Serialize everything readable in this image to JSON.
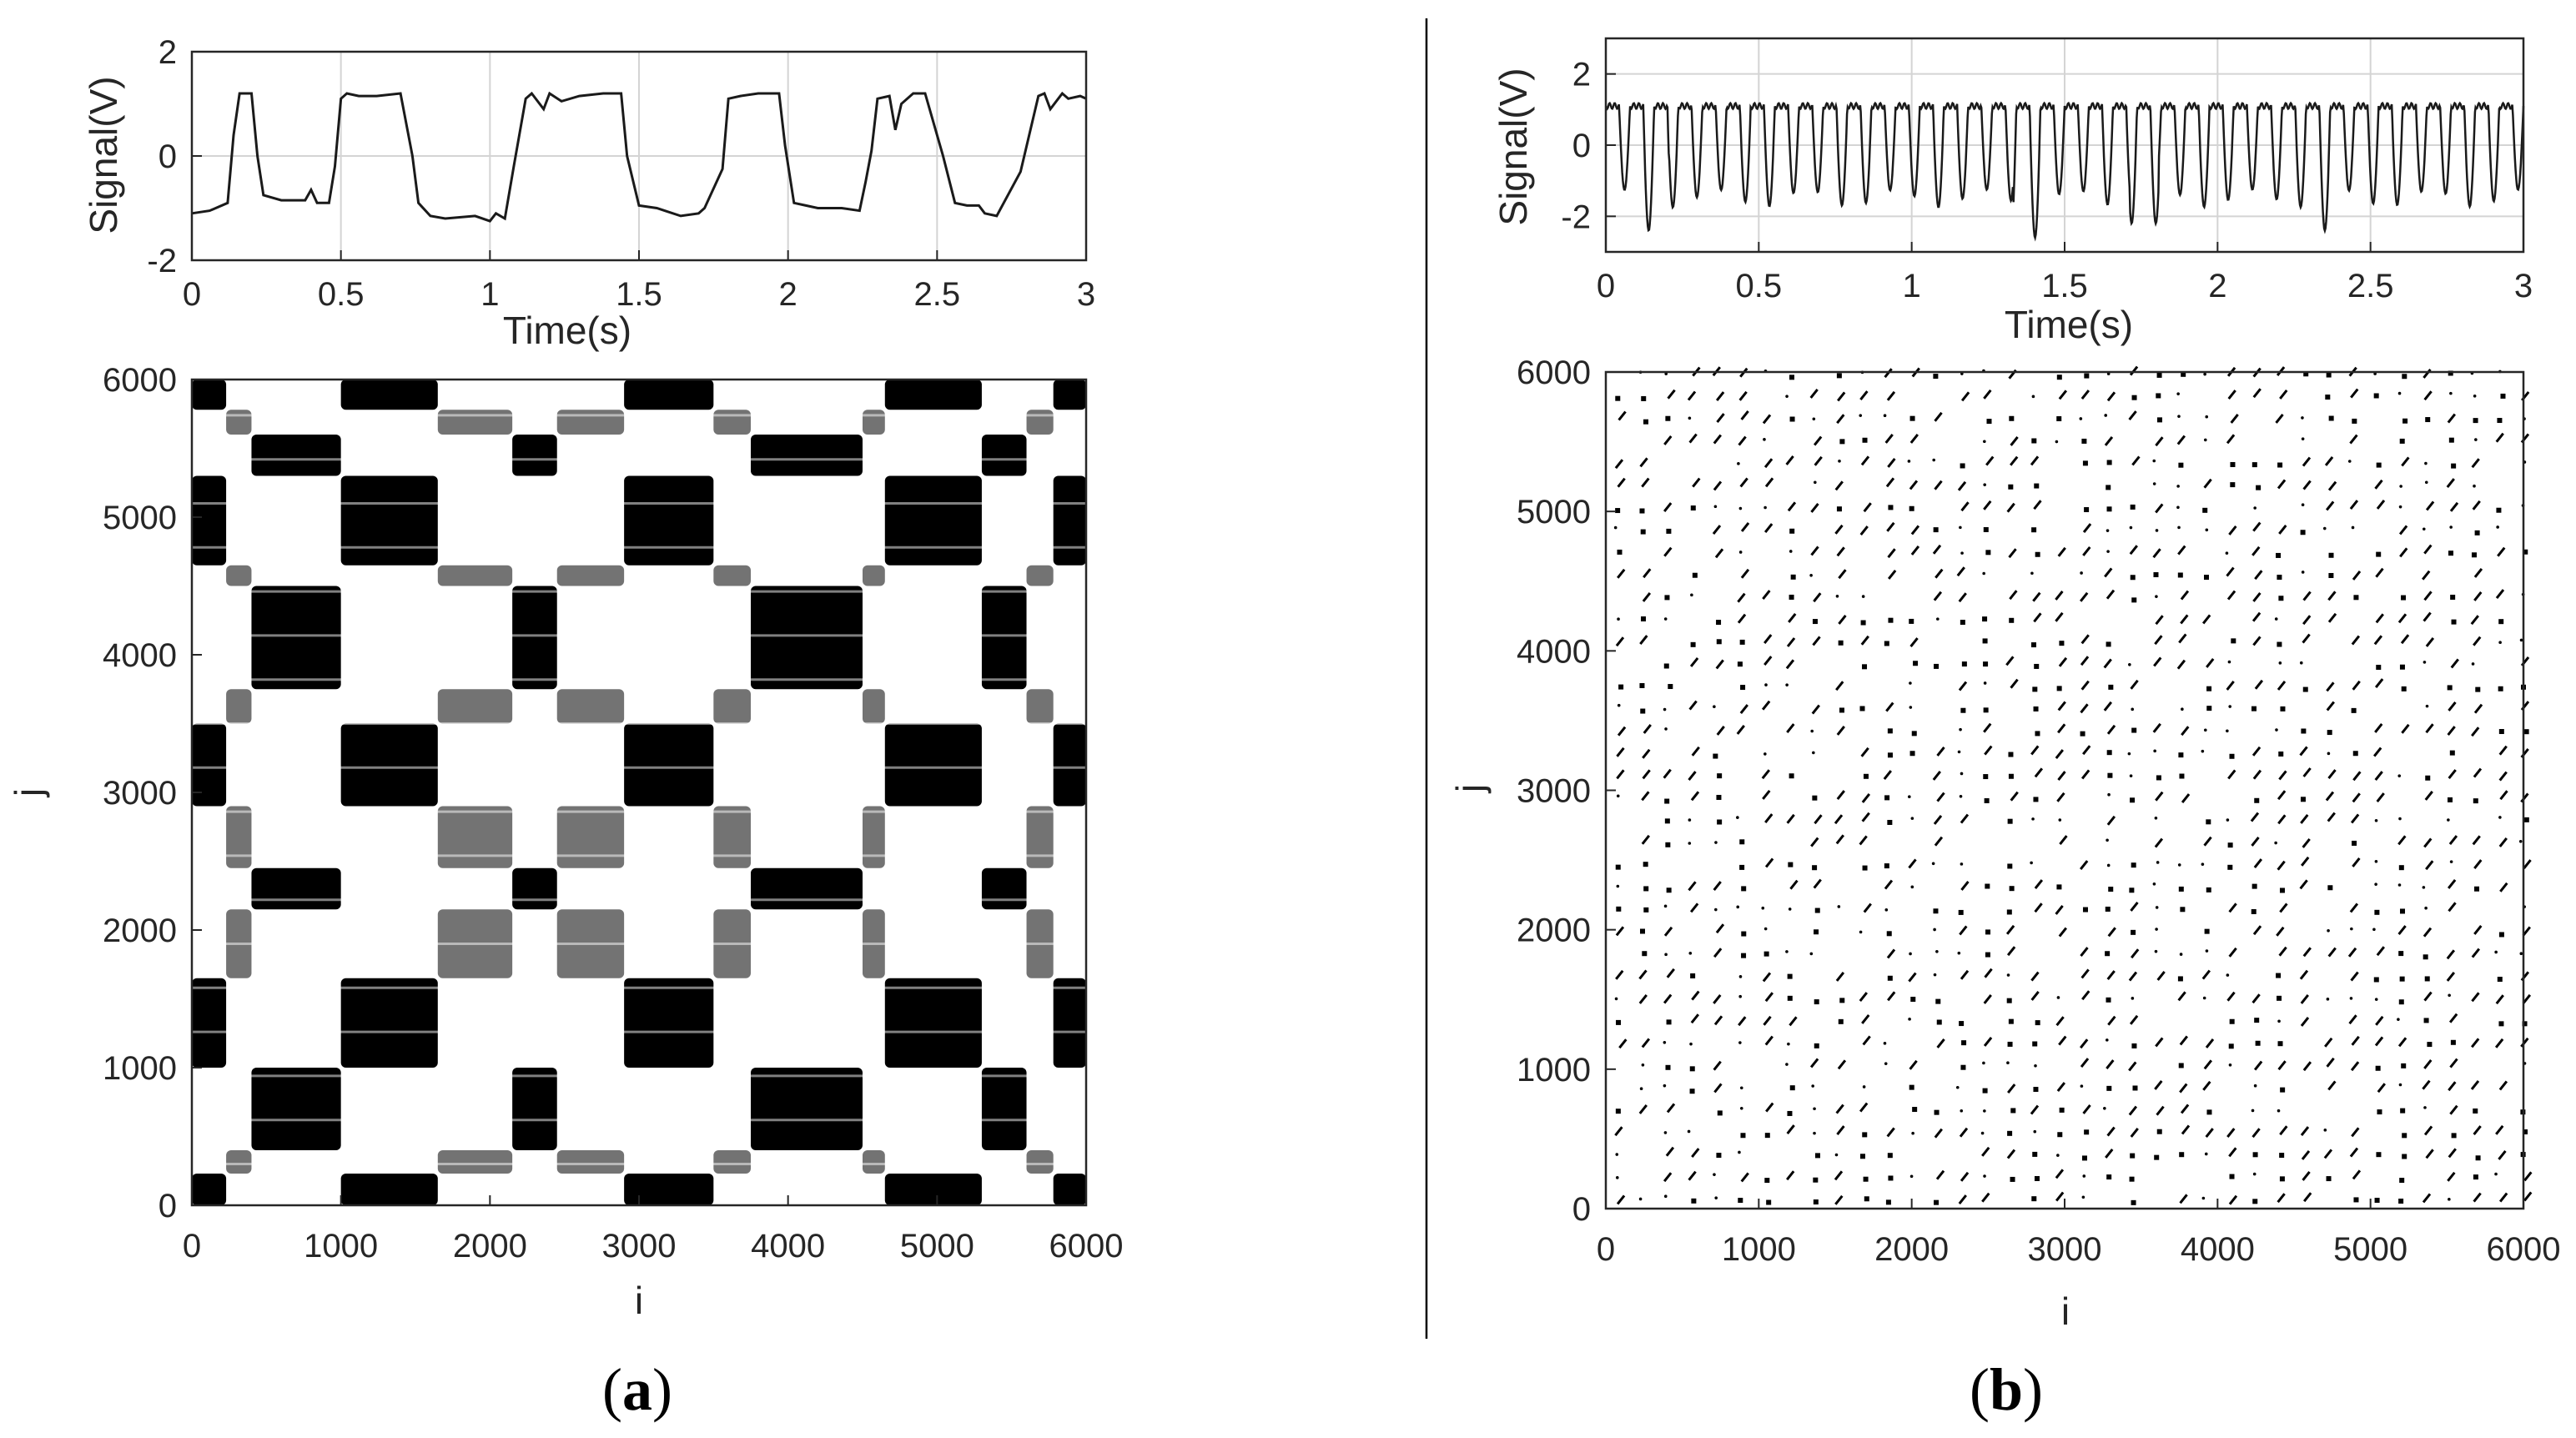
{
  "figure": {
    "caption_a": "a",
    "caption_b": "b"
  },
  "chart_data": [
    {
      "id": "a-signal",
      "type": "line",
      "xlabel": "Time(s)",
      "ylabel": "Signal(V)",
      "xlim": [
        0,
        3
      ],
      "ylim": [
        -2,
        2
      ],
      "xticks": [
        0,
        0.5,
        1,
        1.5,
        2,
        2.5,
        3
      ],
      "yticks": [
        -2,
        0,
        2
      ],
      "grid": true,
      "series": [
        {
          "x": [
            0,
            0.06,
            0.12,
            0.14,
            0.16,
            0.2,
            0.22,
            0.24,
            0.3,
            0.38,
            0.4,
            0.42,
            0.46,
            0.48,
            0.5,
            0.52,
            0.56,
            0.62,
            0.7,
            0.74,
            0.76,
            0.8,
            0.85,
            0.95,
            1.0,
            1.02,
            1.05,
            1.08,
            1.12,
            1.14,
            1.18,
            1.2,
            1.24,
            1.3,
            1.38,
            1.44,
            1.46,
            1.5,
            1.56,
            1.64,
            1.7,
            1.72,
            1.78,
            1.8,
            1.84,
            1.9,
            1.97,
            1.99,
            2.02,
            2.06,
            2.1,
            2.18,
            2.24,
            2.26,
            2.28,
            2.3,
            2.34,
            2.36,
            2.38,
            2.42,
            2.46,
            2.52,
            2.56,
            2.6,
            2.64,
            2.66,
            2.7,
            2.78,
            2.84,
            2.86,
            2.88,
            2.92,
            2.94,
            2.98,
            3.0
          ],
          "y": [
            -1.1,
            -1.05,
            -0.9,
            0.4,
            1.2,
            1.2,
            0.0,
            -0.75,
            -0.85,
            -0.85,
            -0.65,
            -0.9,
            -0.9,
            -0.2,
            1.1,
            1.2,
            1.15,
            1.15,
            1.2,
            0.0,
            -0.9,
            -1.15,
            -1.2,
            -1.15,
            -1.25,
            -1.1,
            -1.2,
            -0.2,
            1.1,
            1.2,
            0.9,
            1.2,
            1.05,
            1.15,
            1.2,
            1.2,
            0.0,
            -0.95,
            -1.0,
            -1.15,
            -1.1,
            -1.0,
            -0.25,
            1.1,
            1.15,
            1.2,
            1.2,
            0.2,
            -0.9,
            -0.95,
            -1.0,
            -1.0,
            -1.05,
            -0.5,
            0.1,
            1.1,
            1.15,
            0.5,
            1.0,
            1.2,
            1.2,
            0.0,
            -0.9,
            -0.95,
            -0.95,
            -1.1,
            -1.15,
            -0.3,
            1.15,
            1.2,
            0.9,
            1.2,
            1.1,
            1.15,
            1.1
          ]
        }
      ]
    },
    {
      "id": "a-recurrence",
      "type": "heatmap",
      "xlabel": "i",
      "ylabel": "j",
      "xlim": [
        0,
        6000
      ],
      "ylim": [
        0,
        6000
      ],
      "xticks": [
        0,
        1000,
        2000,
        3000,
        4000,
        5000,
        6000
      ],
      "yticks": [
        0,
        1000,
        2000,
        3000,
        4000,
        5000,
        6000
      ],
      "grid": false,
      "pattern": "checkerboard",
      "blocks": [
        {
          "from": 0,
          "to": 230,
          "state": "low"
        },
        {
          "from": 230,
          "to": 400,
          "state": "mid"
        },
        {
          "from": 400,
          "to": 1000,
          "state": "high"
        },
        {
          "from": 1000,
          "to": 1650,
          "state": "low"
        },
        {
          "from": 1650,
          "to": 2150,
          "state": "mid"
        },
        {
          "from": 2150,
          "to": 2450,
          "state": "high"
        },
        {
          "from": 2450,
          "to": 2900,
          "state": "mid"
        },
        {
          "from": 2900,
          "to": 3500,
          "state": "low"
        },
        {
          "from": 3500,
          "to": 3750,
          "state": "mid"
        },
        {
          "from": 3750,
          "to": 4500,
          "state": "high"
        },
        {
          "from": 4500,
          "to": 4650,
          "state": "mid"
        },
        {
          "from": 4650,
          "to": 5300,
          "state": "low"
        },
        {
          "from": 5300,
          "to": 5600,
          "state": "high"
        },
        {
          "from": 5600,
          "to": 5780,
          "state": "mid"
        },
        {
          "from": 5780,
          "to": 6000,
          "state": "low"
        }
      ]
    },
    {
      "id": "b-signal",
      "type": "line",
      "xlabel": "Time(s)",
      "ylabel": "Signal(V)",
      "xlim": [
        0,
        3
      ],
      "ylim": [
        -3,
        3
      ],
      "xticks": [
        0,
        0.5,
        1,
        1.5,
        2,
        2.5,
        3
      ],
      "yticks": [
        -2,
        0,
        2
      ],
      "grid": true,
      "oscillation": {
        "cycles": 38,
        "peak": 1.1,
        "trough_typical": -1.5,
        "troughs_deep": [
          {
            "t": 0.16,
            "v": -2.4
          },
          {
            "t": 1.38,
            "v": -2.6
          },
          {
            "t": 1.76,
            "v": -2.2
          },
          {
            "t": 2.36,
            "v": -2.4
          }
        ]
      }
    },
    {
      "id": "b-recurrence",
      "type": "heatmap",
      "xlabel": "i",
      "ylabel": "j",
      "xlim": [
        0,
        6000
      ],
      "ylim": [
        0,
        6000
      ],
      "xticks": [
        0,
        1000,
        2000,
        3000,
        4000,
        5000,
        6000
      ],
      "yticks": [
        0,
        1000,
        2000,
        3000,
        4000,
        5000,
        6000
      ],
      "grid": false,
      "pattern": "sparse-periodic",
      "period": 160
    }
  ]
}
